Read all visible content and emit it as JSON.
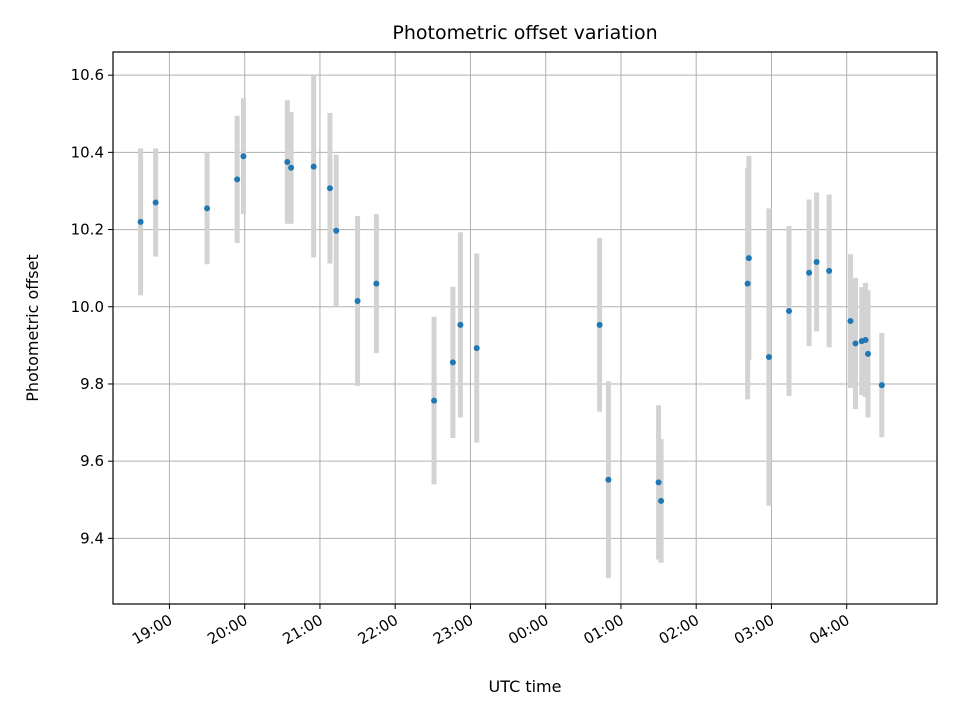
{
  "chart_data": {
    "type": "scatter",
    "title": "Photometric offset variation",
    "xlabel": "UTC time",
    "ylabel": "Photometric offset",
    "x_axis_kind": "time",
    "x_start_date": "2000-01-01",
    "xlim": [
      "18:15",
      "05:12"
    ],
    "ylim": [
      9.23,
      10.66
    ],
    "x_ticks": [
      "19:00",
      "20:00",
      "21:00",
      "22:00",
      "23:00",
      "00:00",
      "01:00",
      "02:00",
      "03:00",
      "04:00"
    ],
    "y_ticks": [
      9.4,
      9.6,
      9.8,
      10.0,
      10.2,
      10.4,
      10.6
    ],
    "y_tick_labels": [
      "9.4",
      "9.6",
      "9.8",
      "10.0",
      "10.2",
      "10.4",
      "10.6"
    ],
    "grid": true,
    "point_color": "#1f77b4",
    "errorbar_color": "#d3d3d3",
    "points": [
      {
        "x": "18:37",
        "y": 10.22,
        "err": 0.19
      },
      {
        "x": "18:49",
        "y": 10.27,
        "err": 0.14
      },
      {
        "x": "19:30",
        "y": 10.255,
        "err": 0.145
      },
      {
        "x": "19:54",
        "y": 10.33,
        "err": 0.165
      },
      {
        "x": "19:59",
        "y": 10.39,
        "err": 0.15
      },
      {
        "x": "20:34",
        "y": 10.375,
        "err": 0.16
      },
      {
        "x": "20:37",
        "y": 10.36,
        "err": 0.145
      },
      {
        "x": "20:55",
        "y": 10.363,
        "err": 0.235
      },
      {
        "x": "21:08",
        "y": 10.307,
        "err": 0.195
      },
      {
        "x": "21:13",
        "y": 10.197,
        "err": 0.197
      },
      {
        "x": "21:30",
        "y": 10.015,
        "err": 0.22
      },
      {
        "x": "21:45",
        "y": 10.06,
        "err": 0.18
      },
      {
        "x": "22:31",
        "y": 9.757,
        "err": 0.217
      },
      {
        "x": "22:46",
        "y": 9.856,
        "err": 0.196
      },
      {
        "x": "22:52",
        "y": 9.953,
        "err": 0.24
      },
      {
        "x": "23:05",
        "y": 9.893,
        "err": 0.245
      },
      {
        "x": "00:43",
        "y": 9.953,
        "err": 0.225
      },
      {
        "x": "00:50",
        "y": 9.552,
        "err": 0.255
      },
      {
        "x": "01:30",
        "y": 9.545,
        "err": 0.2
      },
      {
        "x": "01:32",
        "y": 9.497,
        "err": 0.16
      },
      {
        "x": "02:41",
        "y": 10.06,
        "err": 0.3
      },
      {
        "x": "02:42",
        "y": 10.126,
        "err": 0.265
      },
      {
        "x": "02:58",
        "y": 9.87,
        "err": 0.385
      },
      {
        "x": "03:14",
        "y": 9.989,
        "err": 0.22
      },
      {
        "x": "03:30",
        "y": 10.088,
        "err": 0.19
      },
      {
        "x": "03:36",
        "y": 10.116,
        "err": 0.18
      },
      {
        "x": "03:46",
        "y": 10.093,
        "err": 0.198
      },
      {
        "x": "04:03",
        "y": 9.963,
        "err": 0.173
      },
      {
        "x": "04:07",
        "y": 9.905,
        "err": 0.17
      },
      {
        "x": "04:12",
        "y": 9.911,
        "err": 0.14
      },
      {
        "x": "04:15",
        "y": 9.914,
        "err": 0.148
      },
      {
        "x": "04:17",
        "y": 9.878,
        "err": 0.165
      },
      {
        "x": "04:28",
        "y": 9.797,
        "err": 0.135
      }
    ]
  }
}
